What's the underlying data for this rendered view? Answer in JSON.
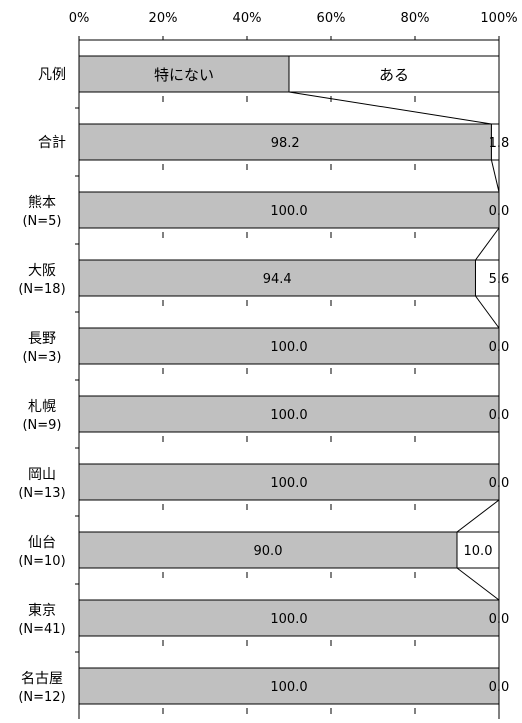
{
  "chart_data": {
    "type": "bar",
    "orientation": "horizontal",
    "stacked": "100%",
    "x_ticks": [
      "0%",
      "20%",
      "40%",
      "60%",
      "80%",
      "100%"
    ],
    "xlim": [
      0,
      100
    ],
    "grid": "vertical dashed",
    "colors": {
      "series_0": "#c0c0c0",
      "series_1": "#ffffff",
      "stroke": "#000000"
    },
    "legend_row": {
      "label": "凡例",
      "values": [
        50,
        50
      ],
      "segment_labels": [
        "特にない",
        "ある"
      ]
    },
    "categories": [
      [
        "合計"
      ],
      [
        "熊本",
        "(N=5)"
      ],
      [
        "大阪",
        "(N=18)"
      ],
      [
        "長野",
        "(N=3)"
      ],
      [
        "札幌",
        "(N=9)"
      ],
      [
        "岡山",
        "(N=13)"
      ],
      [
        "仙台",
        "(N=10)"
      ],
      [
        "東京",
        "(N=41)"
      ],
      [
        "名古屋",
        "(N=12)"
      ]
    ],
    "series": [
      {
        "name": "特にない",
        "values": [
          98.2,
          100.0,
          94.4,
          100.0,
          100.0,
          100.0,
          90.0,
          100.0,
          100.0
        ],
        "labels": [
          "98.2",
          "100.0",
          "94.4",
          "100.0",
          "100.0",
          "100.0",
          "90.0",
          "100.0",
          "100.0"
        ]
      },
      {
        "name": "ある",
        "values": [
          1.8,
          0.0,
          5.6,
          0.0,
          0.0,
          0.0,
          10.0,
          0.0,
          0.0
        ],
        "labels": [
          "1.8",
          "0.0",
          "5.6",
          "0.0",
          "0.0",
          "0.0",
          "10.0",
          "0.0",
          "0.0"
        ]
      }
    ]
  }
}
